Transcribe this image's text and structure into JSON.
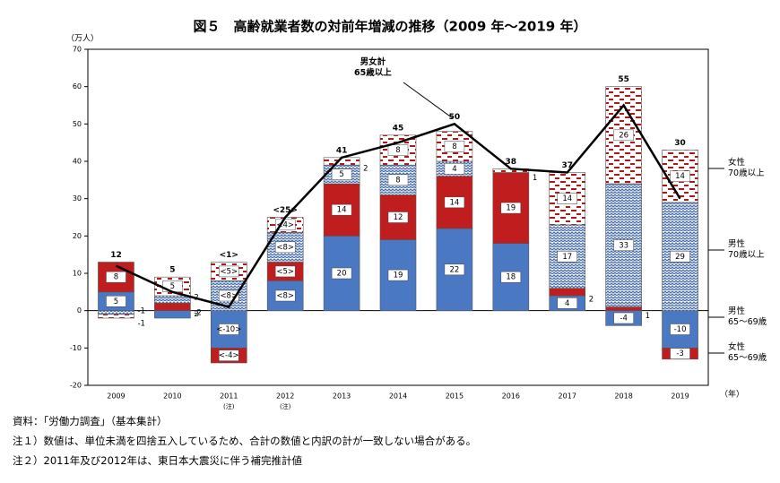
{
  "chart_data": {
    "type": "stacked-bar-line",
    "title": "図５　高齢就業者数の対前年増減の推移（2009 年～2019 年）",
    "y_axis_label": "（万人）",
    "x_axis_label": "（年）",
    "categories": [
      "2009",
      "2010",
      "2011",
      "2012",
      "2013",
      "2014",
      "2015",
      "2016",
      "2017",
      "2018",
      "2019"
    ],
    "category_notes": [
      null,
      null,
      "(注)",
      "(注)",
      null,
      null,
      null,
      null,
      null,
      null,
      null
    ],
    "ylim": [
      -20,
      70
    ],
    "yticks": [
      -20,
      -10,
      0,
      10,
      20,
      30,
      40,
      50,
      60,
      70
    ],
    "series": [
      {
        "name": "男性\n65～69歳",
        "color": "#4a78c2",
        "pattern": "solid",
        "values": [
          5,
          -2,
          -10,
          8,
          20,
          19,
          22,
          18,
          4,
          -4,
          -10
        ],
        "value_labels": [
          null,
          null,
          "<-10>",
          "<8>",
          null,
          null,
          null,
          null,
          null,
          null,
          null
        ]
      },
      {
        "name": "女性\n65～69歳",
        "color": "#c01e1e",
        "pattern": "solid",
        "values": [
          8,
          2,
          -4,
          5,
          14,
          12,
          14,
          19,
          2,
          1,
          -3
        ],
        "value_labels": [
          null,
          null,
          "<-4>",
          "<5>",
          null,
          null,
          null,
          null,
          null,
          null,
          null
        ]
      },
      {
        "name": "男性\n70歳以上",
        "color": "#4a6fa8",
        "pattern": "wave",
        "values": [
          -1,
          2,
          8,
          8,
          5,
          8,
          4,
          null,
          17,
          33,
          29
        ],
        "value_labels": [
          null,
          null,
          "<8>",
          "<8>",
          null,
          null,
          null,
          null,
          null,
          null,
          null
        ]
      },
      {
        "name": "女性\n70歳以上",
        "color": "#b01818",
        "pattern": "dash",
        "values": [
          -1,
          5,
          5,
          4,
          2,
          8,
          8,
          1,
          14,
          26,
          14
        ],
        "value_labels": [
          null,
          null,
          "<5>",
          "<4>",
          null,
          null,
          null,
          null,
          null,
          null,
          null
        ]
      }
    ],
    "total": {
      "name": "男女計\n65歳以上",
      "color": "#000000",
      "values": [
        12,
        5,
        1,
        25,
        41,
        45,
        50,
        38,
        37,
        55,
        30
      ],
      "value_labels": [
        null,
        null,
        "<1>",
        "<25>",
        null,
        null,
        null,
        null,
        null,
        null,
        null
      ]
    },
    "notes": [
      "資料：「労働力調査」（基本集計）",
      "注１）数値は、単位未満を四捨五入しているため、合計の数値と内訳の計が一致しない場合がある。",
      "注２）2011年及び2012年は、東日本大震災に伴う補完推計値"
    ]
  }
}
